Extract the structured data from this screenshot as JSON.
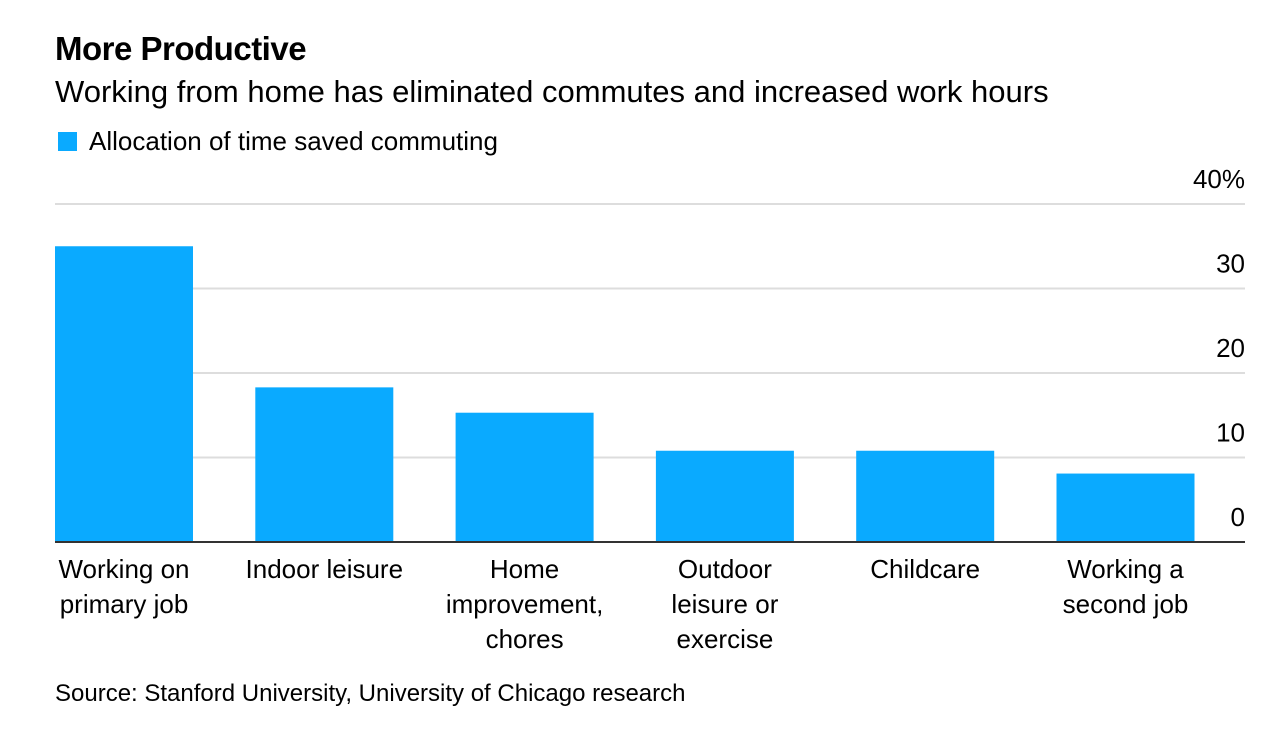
{
  "title": "More Productive",
  "subtitle": "Working from home has eliminated commutes and increased work hours",
  "source": "Source: Stanford University, University of Chicago research",
  "colors": {
    "bar": "#0aaaff",
    "grid": "#dddddd",
    "axis": "#333333"
  },
  "chart_data": {
    "type": "bar",
    "title": "More Productive",
    "subtitle": "Working from home has eliminated commutes and increased work hours",
    "categories": [
      [
        "Working on",
        "primary job"
      ],
      [
        "Indoor leisure"
      ],
      [
        "Home",
        "improvement,",
        "chores"
      ],
      [
        "Outdoor",
        "leisure or",
        "exercise"
      ],
      [
        "Childcare"
      ],
      [
        "Working a",
        "second job"
      ]
    ],
    "series": [
      {
        "name": "Allocation of time saved commuting",
        "values": [
          35.0,
          18.3,
          15.3,
          10.8,
          10.8,
          8.1
        ]
      }
    ],
    "ylim": [
      0,
      40
    ],
    "yticks": [
      0,
      10,
      20,
      30,
      40
    ],
    "ytick_labels": [
      "0",
      "10",
      "20",
      "30",
      "40%"
    ],
    "y_axis_position": "right",
    "grid": true,
    "legend_position": "top-left"
  }
}
